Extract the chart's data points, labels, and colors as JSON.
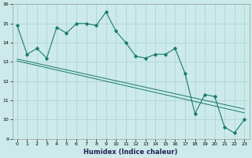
{
  "title": "",
  "xlabel": "Humidex (Indice chaleur)",
  "bg_color": "#cceaea",
  "grid_color": "#b0d4d4",
  "line_color": "#1a7a6e",
  "x_values": [
    0,
    1,
    2,
    3,
    4,
    5,
    6,
    7,
    8,
    9,
    10,
    11,
    12,
    13,
    14,
    15,
    16,
    17,
    18,
    19,
    20,
    21,
    22,
    23
  ],
  "series1": [
    14.9,
    13.4,
    13.7,
    13.2,
    14.8,
    14.5,
    15.0,
    15.0,
    14.9,
    15.6,
    14.6,
    14.0,
    13.3,
    13.2,
    13.4,
    13.4,
    13.7,
    12.4,
    10.3,
    11.3,
    11.2,
    9.6,
    9.3,
    10.0
  ],
  "trend1_y": [
    13.15,
    10.55
  ],
  "trend2_y": [
    13.05,
    10.35
  ],
  "ylim": [
    9,
    16
  ],
  "xlim": [
    -0.5,
    23.5
  ],
  "yticks": [
    9,
    10,
    11,
    12,
    13,
    14,
    15,
    16
  ],
  "xticks": [
    0,
    1,
    2,
    3,
    4,
    5,
    6,
    7,
    8,
    9,
    10,
    11,
    12,
    13,
    14,
    15,
    16,
    17,
    18,
    19,
    20,
    21,
    22,
    23
  ],
  "tick_fontsize": 4.5,
  "xlabel_fontsize": 6.0,
  "xlabel_color": "#222255",
  "spine_color": "#999999"
}
